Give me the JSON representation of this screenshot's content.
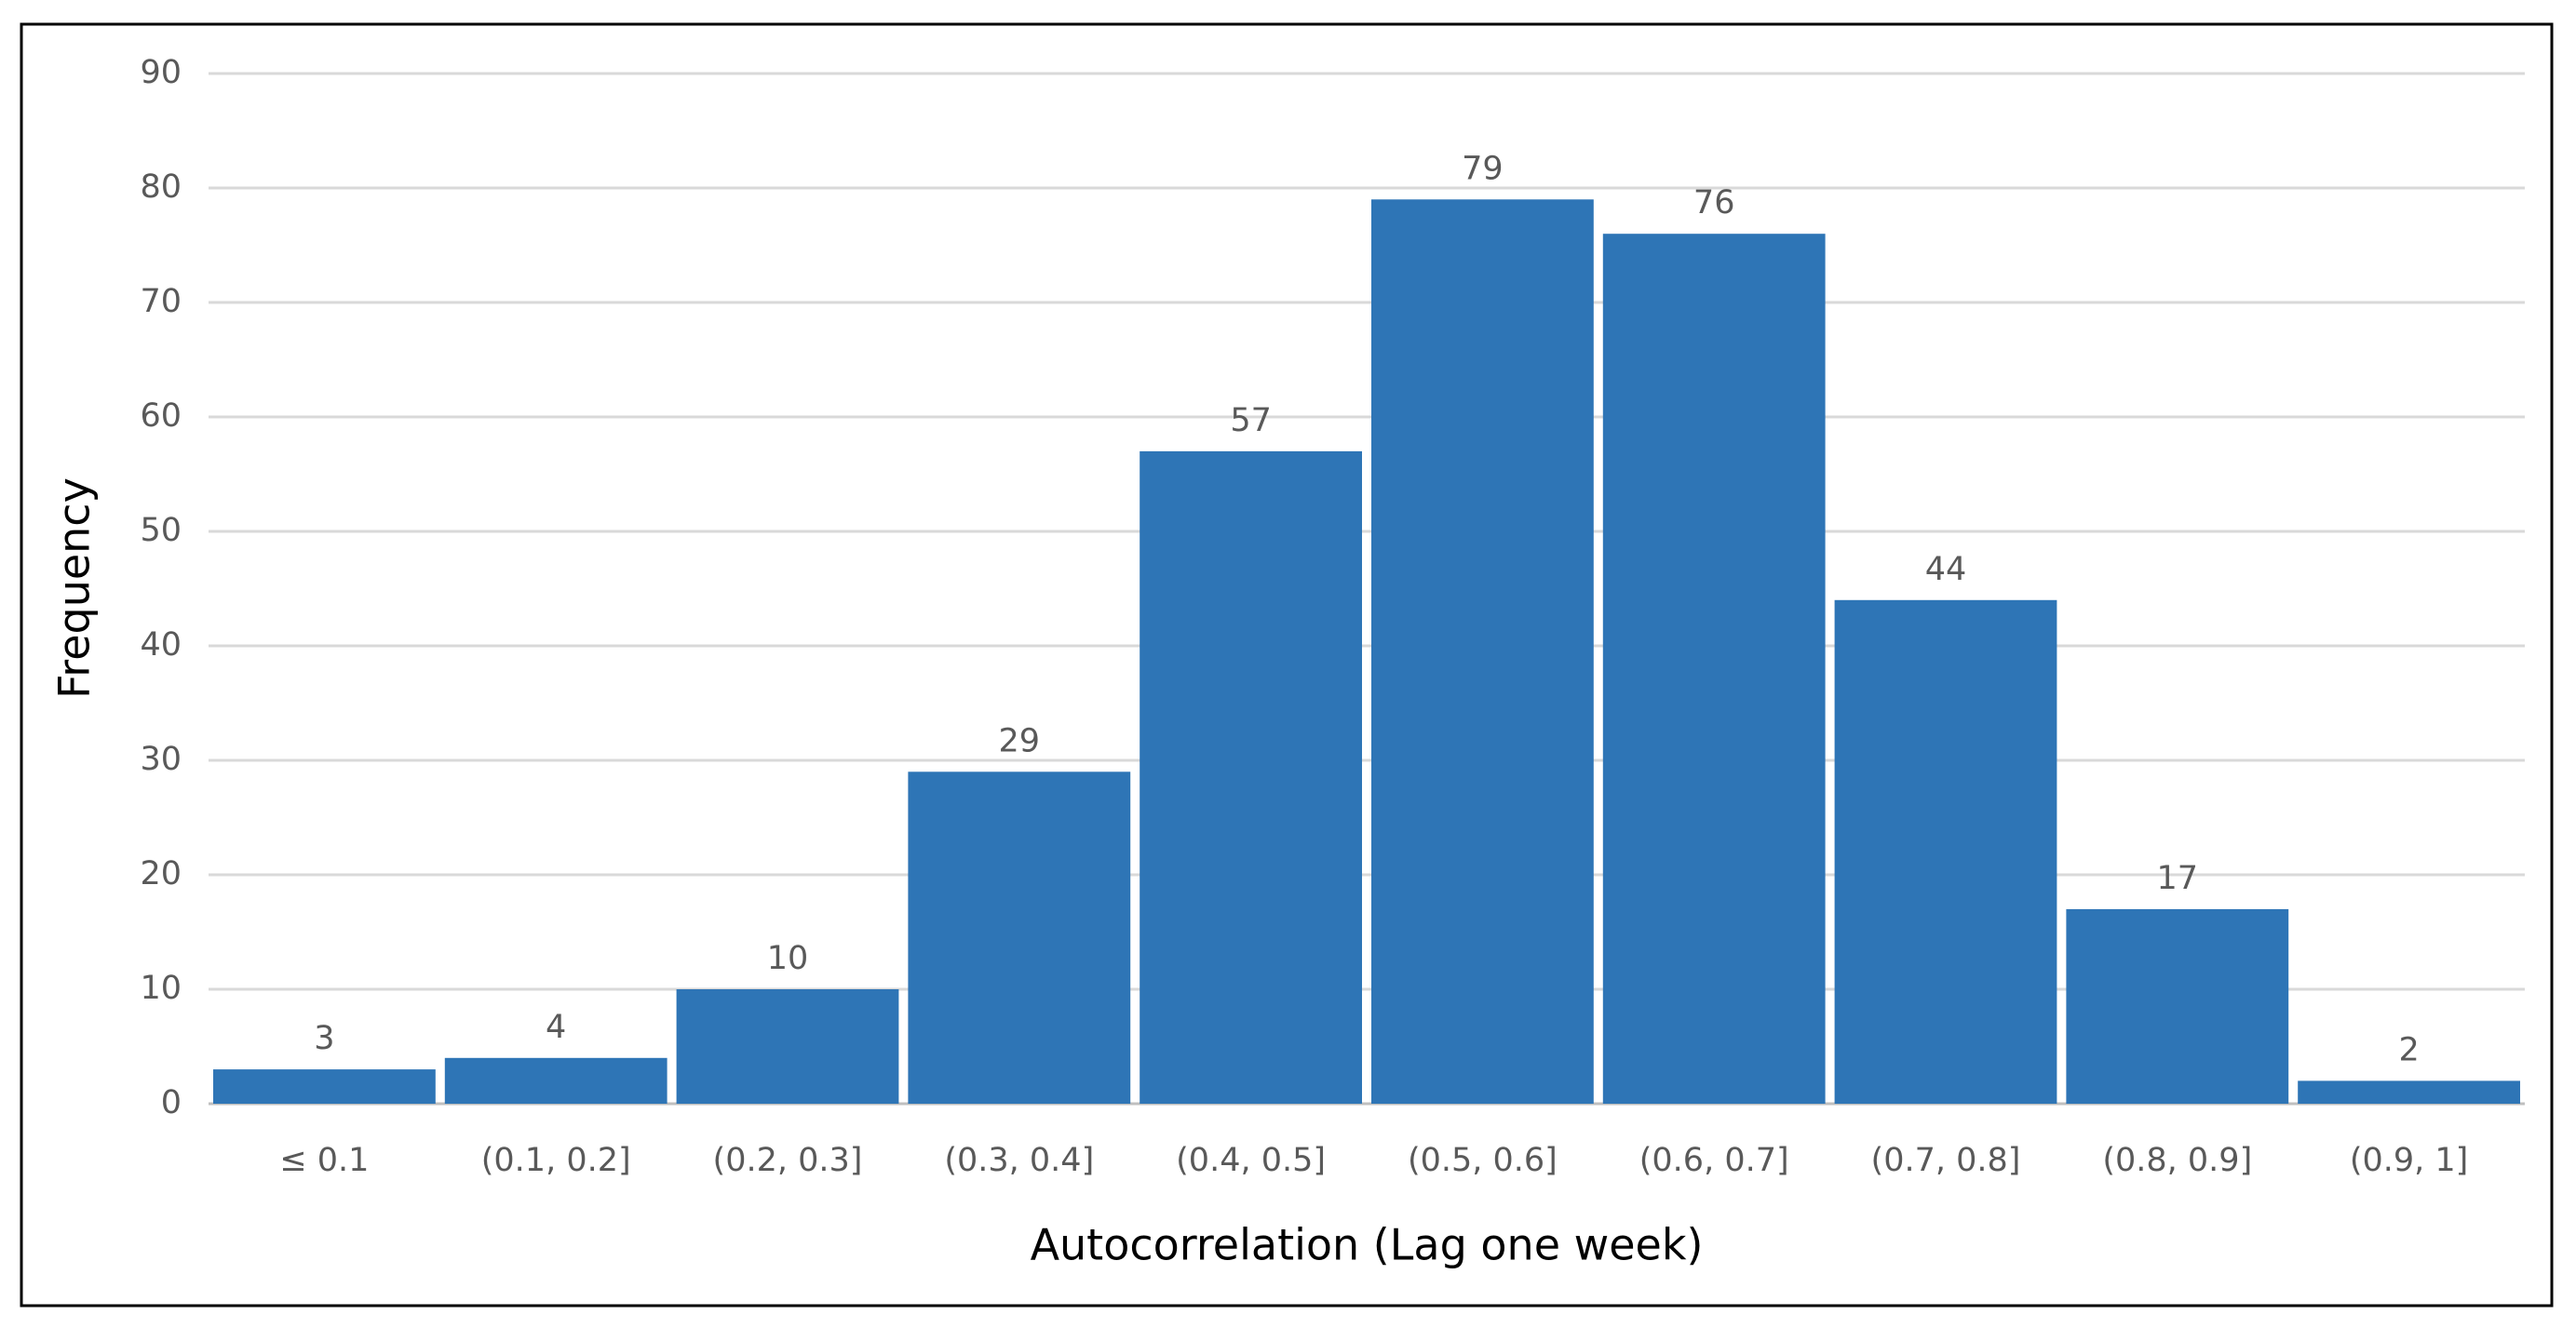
{
  "chart_data": {
    "type": "bar",
    "x_label": "Autocorrelation (Lag one week)",
    "y_label": "Frequency",
    "categories": [
      "≤ 0.1",
      "(0.1, 0.2]",
      "(0.2, 0.3]",
      "(0.3, 0.4]",
      "(0.4, 0.5]",
      "(0.5, 0.6]",
      "(0.6, 0.7]",
      "(0.7, 0.8]",
      "(0.8, 0.9]",
      "(0.9, 1]"
    ],
    "values": [
      3,
      4,
      10,
      29,
      57,
      79,
      76,
      44,
      17,
      2
    ],
    "color": "#2e75b6",
    "ylim": [
      0,
      90
    ],
    "yticks": [
      0,
      10,
      20,
      30,
      40,
      50,
      60,
      70,
      80,
      90
    ],
    "grid": true
  }
}
